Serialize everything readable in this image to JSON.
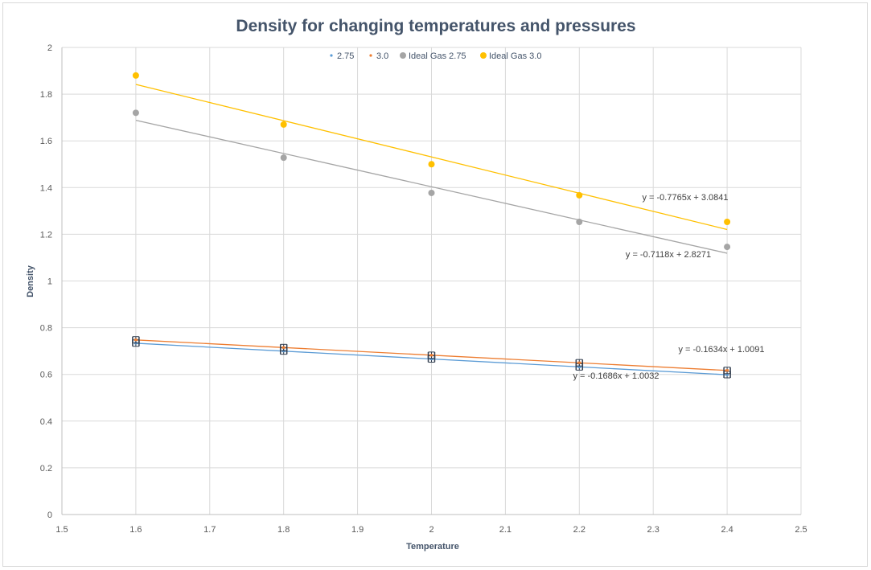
{
  "chart_data": {
    "type": "scatter",
    "title": "Density for changing temperatures and pressures",
    "xlabel": "Temperature",
    "ylabel": "Density",
    "xlim": [
      1.5,
      2.5
    ],
    "ylim": [
      0,
      2
    ],
    "x_ticks": [
      "1.5",
      "1.6",
      "1.7",
      "1.8",
      "1.9",
      "2",
      "2.1",
      "2.2",
      "2.3",
      "2.4",
      "2.5"
    ],
    "y_ticks": [
      "0",
      "0.2",
      "0.4",
      "0.6",
      "0.8",
      "1",
      "1.2",
      "1.4",
      "1.6",
      "1.8",
      "2"
    ],
    "grid": true,
    "legend_position": "top",
    "x": [
      1.6,
      1.8,
      2.0,
      2.2,
      2.4
    ],
    "series": [
      {
        "name": "2.75",
        "color": "#5b9bd5",
        "marker": "small",
        "error_bars": true,
        "values": [
          0.734,
          0.7,
          0.666,
          0.632,
          0.599
        ],
        "trendline": {
          "slope": -0.1686,
          "intercept": 1.0032,
          "label": "y = -0.1686x + 1.0032"
        }
      },
      {
        "name": "3.0",
        "color": "#ed7d31",
        "marker": "small",
        "error_bars": true,
        "values": [
          0.748,
          0.715,
          0.682,
          0.65,
          0.617
        ],
        "trendline": {
          "slope": -0.1634,
          "intercept": 1.0091,
          "label": "y = -0.1634x + 1.0091"
        }
      },
      {
        "name": "Ideal Gas 2.75",
        "color": "#a5a5a5",
        "marker": "circle",
        "error_bars": false,
        "values": [
          1.72,
          1.528,
          1.377,
          1.253,
          1.146
        ],
        "trendline": {
          "slope": -0.7118,
          "intercept": 2.8271,
          "label": "y = -0.7118x + 2.8271"
        }
      },
      {
        "name": "Ideal Gas 3.0",
        "color": "#ffc000",
        "marker": "circle",
        "error_bars": false,
        "values": [
          1.88,
          1.67,
          1.5,
          1.367,
          1.253
        ],
        "trendline": {
          "slope": -0.7765,
          "intercept": 3.0841,
          "label": "y = -0.7765x + 3.0841"
        }
      }
    ]
  }
}
